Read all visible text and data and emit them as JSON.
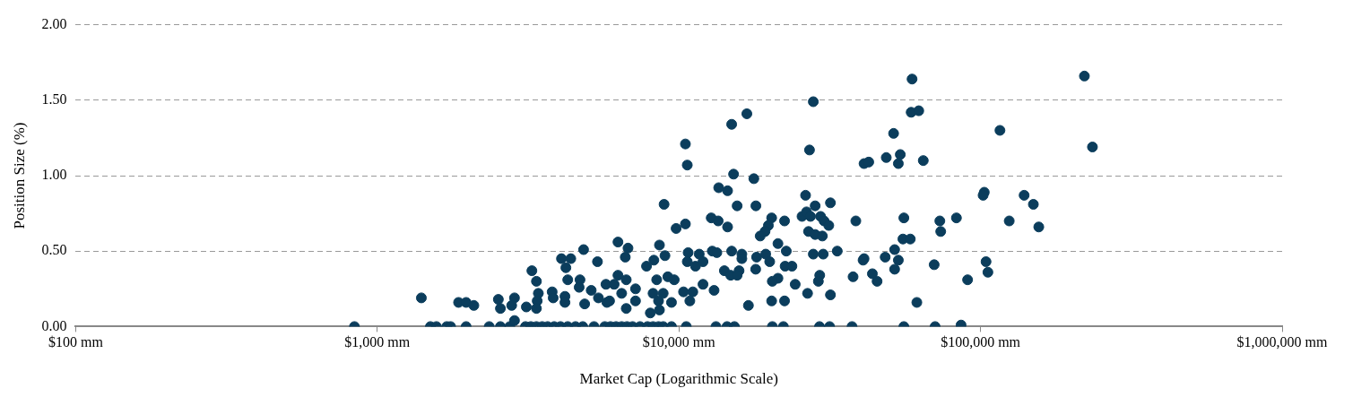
{
  "chart_data": {
    "type": "scatter",
    "xlabel": "Market Cap (Logarithmic Scale)",
    "ylabel": "Position Size (%)",
    "log": "x",
    "grid": "y",
    "marker": "circle",
    "legend": false,
    "xlim": [
      100,
      1000000
    ],
    "xticks": [
      {
        "value": 100,
        "label": "$100 mm"
      },
      {
        "value": 1000,
        "label": "$1,000 mm"
      },
      {
        "value": 10000,
        "label": "$10,000 mm"
      },
      {
        "value": 100000,
        "label": "$100,000 mm"
      },
      {
        "value": 1000000,
        "label": "$1,000,000 mm"
      }
    ],
    "ylim": [
      0,
      2
    ],
    "yticks": [
      {
        "value": 0,
        "label": "0.00"
      },
      {
        "value": 0.5,
        "label": "0.50"
      },
      {
        "value": 1,
        "label": "1.00"
      },
      {
        "value": 1.5,
        "label": "1.50"
      },
      {
        "value": 2,
        "label": "2.00"
      }
    ],
    "series": [
      {
        "color": "#0b3d5c",
        "x": [
          840,
          1400,
          1500,
          1570,
          1700,
          1750,
          1860,
          1970,
          2090,
          1970,
          2350,
          2560,
          2750,
          2850,
          2520,
          2560,
          2850,
          2790,
          3120,
          3255,
          3370,
          3420,
          3390,
          3370,
          3800,
          3830,
          4080,
          4380,
          4220,
          4280,
          4190,
          4190,
          4830,
          5370,
          4700,
          4670,
          4870,
          5120,
          5410,
          5730,
          6100,
          5770,
          5890,
          6280,
          6780,
          6640,
          6280,
          6690,
          6460,
          6690,
          3100,
          3230,
          3370,
          3520,
          3670,
          3860,
          4050,
          4280,
          4540,
          4800,
          5230,
          5680,
          5930,
          6190,
          6460,
          6730,
          7020,
          7430,
          7870,
          8210,
          8560,
          8870,
          9450,
          10580,
          13270,
          14440,
          15280,
          20410,
          22200,
          29250,
          31600,
          37500,
          55700,
          70700,
          86200,
          27900,
          16800,
          14960,
          10510,
          10660,
          27100,
          41100,
          15180,
          17720,
          13550,
          14500,
          8930,
          15600,
          18000,
          26300,
          28300,
          31800,
          25600,
          26500,
          27300,
          29500,
          30300,
          31400,
          38600,
          12800,
          13500,
          14500,
          20300,
          19800,
          19300,
          18600,
          22400,
          26900,
          28300,
          29900,
          10510,
          9790,
          8620,
          8990,
          7810,
          8260,
          10730,
          11680,
          10660,
          11350,
          12020,
          12900,
          13360,
          14960,
          16170,
          16170,
          18100,
          19400,
          20000,
          21300,
          22700,
          22500,
          23700,
          17970,
          14150,
          14850,
          15830,
          15600,
          27900,
          30100,
          33500,
          41100,
          29300,
          29000,
          37800,
          21300,
          20400,
          24300,
          26700,
          31800,
          20300,
          22400,
          17000,
          9190,
          9650,
          8440,
          8870,
          9450,
          8620,
          8040,
          10360,
          10870,
          11120,
          12020,
          13080,
          7180,
          8210,
          7180,
          8560,
          59300,
          221000,
          58900,
          62400,
          51500,
          116000,
          235000,
          42600,
          48700,
          54200,
          53400,
          64600,
          102900,
          102000,
          139500,
          149700,
          156000,
          124500,
          83200,
          73300,
          73800,
          55700,
          55300,
          58500,
          51900,
          48300,
          53400,
          51900,
          40800,
          43800,
          45400,
          70200,
          90600,
          104300,
          105800,
          61500
        ],
        "values": [
          0,
          0.19,
          0,
          0,
          0,
          0,
          0.16,
          0.16,
          0.14,
          0,
          0,
          0,
          0,
          0.04,
          0.18,
          0.12,
          0.19,
          0.14,
          0.13,
          0.37,
          0.3,
          0.22,
          0.17,
          0.12,
          0.23,
          0.19,
          0.45,
          0.45,
          0.39,
          0.31,
          0.2,
          0.16,
          0.51,
          0.43,
          0.31,
          0.26,
          0.15,
          0.24,
          0.19,
          0.28,
          0.28,
          0.16,
          0.17,
          0.56,
          0.52,
          0.46,
          0.34,
          0.31,
          0.22,
          0.12,
          0,
          0,
          0,
          0,
          0,
          0,
          0,
          0,
          0,
          0,
          0,
          0,
          0,
          0,
          0,
          0,
          0,
          0,
          0,
          0,
          0,
          0,
          0,
          0,
          0,
          0,
          0,
          0,
          0,
          0,
          0,
          0,
          0,
          0,
          0.01,
          1.49,
          1.41,
          1.34,
          1.21,
          1.07,
          1.17,
          1.08,
          1.01,
          0.98,
          0.92,
          0.9,
          0.81,
          0.8,
          0.8,
          0.87,
          0.8,
          0.82,
          0.73,
          0.76,
          0.73,
          0.73,
          0.7,
          0.67,
          0.7,
          0.72,
          0.7,
          0.66,
          0.72,
          0.67,
          0.63,
          0.6,
          0.7,
          0.63,
          0.61,
          0.6,
          0.68,
          0.65,
          0.54,
          0.47,
          0.4,
          0.44,
          0.49,
          0.48,
          0.43,
          0.4,
          0.43,
          0.5,
          0.49,
          0.5,
          0.48,
          0.45,
          0.46,
          0.48,
          0.43,
          0.55,
          0.5,
          0.4,
          0.4,
          0.38,
          0.37,
          0.34,
          0.37,
          0.34,
          0.48,
          0.48,
          0.5,
          0.45,
          0.34,
          0.3,
          0.33,
          0.32,
          0.3,
          0.28,
          0.22,
          0.21,
          0.17,
          0.17,
          0.14,
          0.33,
          0.31,
          0.31,
          0.22,
          0.16,
          0.11,
          0.09,
          0.23,
          0.17,
          0.23,
          0.28,
          0.24,
          0.25,
          0.22,
          0.17,
          0.17,
          1.64,
          1.66,
          1.42,
          1.43,
          1.28,
          1.3,
          1.19,
          1.09,
          1.12,
          1.14,
          1.08,
          1.1,
          0.89,
          0.87,
          0.87,
          0.81,
          0.66,
          0.7,
          0.72,
          0.7,
          0.63,
          0.72,
          0.58,
          0.58,
          0.51,
          0.46,
          0.44,
          0.38,
          0.44,
          0.35,
          0.3,
          0.41,
          0.31,
          0.43,
          0.36,
          0.16
        ]
      }
    ]
  }
}
